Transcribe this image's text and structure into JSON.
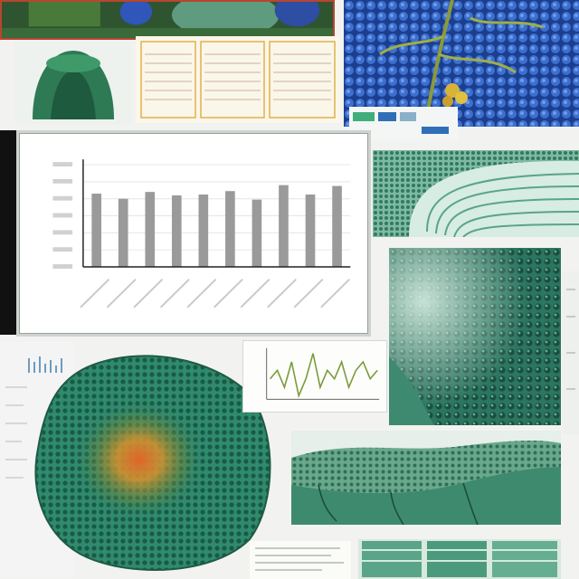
{
  "collage": {
    "description_panels": [
      "insect-scale-microscopy",
      "blue-cell-pattern-with-fern",
      "green-specimen",
      "data-table-sheet",
      "bar-chart",
      "striated-fiber-micrograph",
      "cellular-surface-micrograph",
      "spectrum-sheet",
      "green-cell-colony",
      "line-graph",
      "tissue-channel-micrograph",
      "document-snippet",
      "stacked-micrograph-strips"
    ]
  },
  "colors": {
    "teal": "#2f8a6e",
    "deep_green": "#1f5a44",
    "blue": "#2757b8",
    "orange": "#d9792c",
    "bar_gray": "#9a9a9a"
  },
  "chart_data": {
    "type": "bar",
    "title": "",
    "xlabel": "",
    "ylabel": "",
    "categories": [
      "",
      "",
      "",
      "",
      "",
      "",
      "",
      "",
      "",
      ""
    ],
    "values": [
      8.6,
      8.0,
      8.8,
      8.4,
      8.5,
      8.9,
      7.9,
      9.6,
      8.5,
      9.5
    ],
    "ylim": [
      0,
      12
    ],
    "yticks": [
      0,
      2,
      4,
      6,
      8,
      10,
      12
    ],
    "grid": true,
    "legend": "none"
  },
  "line_graph": {
    "values": [
      5,
      6,
      4,
      7,
      3,
      5,
      8,
      4,
      6,
      5,
      7,
      4,
      6,
      7,
      5,
      6
    ]
  }
}
